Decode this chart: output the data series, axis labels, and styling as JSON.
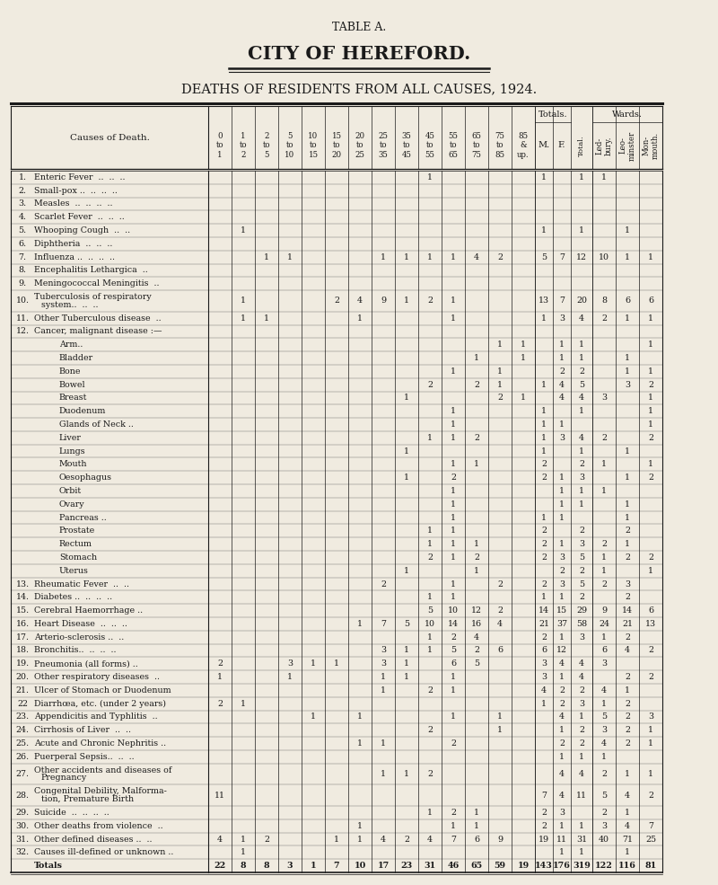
{
  "title1": "TABLE A.",
  "title2": "CITY OF HEREFORD.",
  "title3": "DEATHS OF RESIDENTS FROM ALL CAUSES, 1924.",
  "bg_color": "#f0ebe0",
  "text_color": "#1a1a1a",
  "rows": [
    {
      "num": "1.",
      "label": "Enteric Fever  ..  ..  ..",
      "indent": 0,
      "data": [
        null,
        null,
        null,
        null,
        null,
        null,
        null,
        null,
        null,
        1,
        null,
        null,
        null,
        null,
        1,
        null,
        1,
        1,
        null,
        null
      ]
    },
    {
      "num": "2.",
      "label": "Small-pox ..  ..  ..  ..",
      "indent": 0,
      "data": [
        null,
        null,
        null,
        null,
        null,
        null,
        null,
        null,
        null,
        null,
        null,
        null,
        null,
        null,
        null,
        null,
        null,
        null,
        null,
        null
      ]
    },
    {
      "num": "3.",
      "label": "Measles  ..  ..  ..  ..",
      "indent": 0,
      "data": [
        null,
        null,
        null,
        null,
        null,
        null,
        null,
        null,
        null,
        null,
        null,
        null,
        null,
        null,
        null,
        null,
        null,
        null,
        null,
        null
      ]
    },
    {
      "num": "4.",
      "label": "Scarlet Fever  ..  ..  ..",
      "indent": 0,
      "data": [
        null,
        null,
        null,
        null,
        null,
        null,
        null,
        null,
        null,
        null,
        null,
        null,
        null,
        null,
        null,
        null,
        null,
        null,
        null,
        null
      ]
    },
    {
      "num": "5.",
      "label": "Whooping Cough  ..  ..",
      "indent": 0,
      "data": [
        null,
        1,
        null,
        null,
        null,
        null,
        null,
        null,
        null,
        null,
        null,
        null,
        null,
        null,
        1,
        null,
        1,
        null,
        1,
        null
      ]
    },
    {
      "num": "6.",
      "label": "Diphtheria  ..  ..  ..",
      "indent": 0,
      "data": [
        null,
        null,
        null,
        null,
        null,
        null,
        null,
        null,
        null,
        null,
        null,
        null,
        null,
        null,
        null,
        null,
        null,
        null,
        null,
        null
      ]
    },
    {
      "num": "7.",
      "label": "Influenza ..  ..  ..  ..",
      "indent": 0,
      "data": [
        null,
        null,
        1,
        1,
        null,
        null,
        null,
        1,
        1,
        1,
        1,
        4,
        2,
        null,
        5,
        7,
        12,
        10,
        1,
        1
      ]
    },
    {
      "num": "8.",
      "label": "Encephalitis Lethargica  ..",
      "indent": 0,
      "data": [
        null,
        null,
        null,
        null,
        null,
        null,
        null,
        null,
        null,
        null,
        null,
        null,
        null,
        null,
        null,
        null,
        null,
        null,
        null,
        null
      ]
    },
    {
      "num": "9.",
      "label": "Meningococcal Meningitis  ..",
      "indent": 0,
      "data": [
        null,
        null,
        null,
        null,
        null,
        null,
        null,
        null,
        null,
        null,
        null,
        null,
        null,
        null,
        null,
        null,
        null,
        null,
        null,
        null
      ]
    },
    {
      "num": "10.",
      "label": "Tuberculosis of respiratory",
      "label2": "        system..  ..  ..",
      "indent": 0,
      "data": [
        null,
        1,
        null,
        null,
        null,
        2,
        4,
        9,
        1,
        2,
        1,
        null,
        null,
        null,
        13,
        7,
        20,
        8,
        6,
        6
      ]
    },
    {
      "num": "11.",
      "label": "Other Tuberculous disease  ..",
      "indent": 0,
      "data": [
        null,
        1,
        1,
        null,
        null,
        null,
        1,
        null,
        null,
        null,
        1,
        null,
        null,
        null,
        1,
        3,
        4,
        2,
        1,
        1
      ]
    },
    {
      "num": "12.",
      "label": "Cancer, malignant disease :—",
      "indent": 0,
      "data": [
        null,
        null,
        null,
        null,
        null,
        null,
        null,
        null,
        null,
        null,
        null,
        null,
        null,
        null,
        null,
        null,
        null,
        null,
        null,
        null
      ]
    },
    {
      "num": "",
      "label": "Arm..",
      "indent": 1,
      "data": [
        null,
        null,
        null,
        null,
        null,
        null,
        null,
        null,
        null,
        null,
        null,
        null,
        1,
        1,
        null,
        1,
        1,
        null,
        null,
        1
      ]
    },
    {
      "num": "",
      "label": "Bladder",
      "indent": 1,
      "data": [
        null,
        null,
        null,
        null,
        null,
        null,
        null,
        null,
        null,
        null,
        null,
        1,
        null,
        1,
        null,
        1,
        1,
        null,
        1,
        null
      ]
    },
    {
      "num": "",
      "label": "Bone",
      "indent": 1,
      "data": [
        null,
        null,
        null,
        null,
        null,
        null,
        null,
        null,
        null,
        null,
        1,
        null,
        1,
        null,
        null,
        2,
        2,
        null,
        1,
        1
      ]
    },
    {
      "num": "",
      "label": "Bowel",
      "indent": 1,
      "data": [
        null,
        null,
        null,
        null,
        null,
        null,
        null,
        null,
        null,
        2,
        null,
        2,
        1,
        null,
        1,
        4,
        5,
        null,
        3,
        2
      ]
    },
    {
      "num": "",
      "label": "Breast",
      "indent": 1,
      "data": [
        null,
        null,
        null,
        null,
        null,
        null,
        null,
        null,
        1,
        null,
        null,
        null,
        2,
        1,
        null,
        4,
        4,
        3,
        null,
        1
      ]
    },
    {
      "num": "",
      "label": "Duodenum",
      "indent": 1,
      "data": [
        null,
        null,
        null,
        null,
        null,
        null,
        null,
        null,
        null,
        null,
        1,
        null,
        null,
        null,
        1,
        null,
        1,
        null,
        null,
        1
      ]
    },
    {
      "num": "",
      "label": "Glands of Neck ..",
      "indent": 1,
      "data": [
        null,
        null,
        null,
        null,
        null,
        null,
        null,
        null,
        null,
        null,
        1,
        null,
        null,
        null,
        1,
        1,
        null,
        null,
        null,
        1
      ]
    },
    {
      "num": "",
      "label": "Liver",
      "indent": 1,
      "data": [
        null,
        null,
        null,
        null,
        null,
        null,
        null,
        null,
        null,
        1,
        1,
        2,
        null,
        null,
        1,
        3,
        4,
        2,
        null,
        2
      ]
    },
    {
      "num": "",
      "label": "Lungs",
      "indent": 1,
      "data": [
        null,
        null,
        null,
        null,
        null,
        null,
        null,
        null,
        1,
        null,
        null,
        null,
        null,
        null,
        1,
        null,
        1,
        null,
        1,
        null
      ]
    },
    {
      "num": "",
      "label": "Mouth",
      "indent": 1,
      "data": [
        null,
        null,
        null,
        null,
        null,
        null,
        null,
        null,
        null,
        null,
        1,
        1,
        null,
        null,
        2,
        null,
        2,
        1,
        null,
        1
      ]
    },
    {
      "num": "",
      "label": "Oesophagus",
      "indent": 1,
      "data": [
        null,
        null,
        null,
        null,
        null,
        null,
        null,
        null,
        1,
        null,
        2,
        null,
        null,
        null,
        2,
        1,
        3,
        null,
        1,
        2
      ]
    },
    {
      "num": "",
      "label": "Orbit",
      "indent": 1,
      "data": [
        null,
        null,
        null,
        null,
        null,
        null,
        null,
        null,
        null,
        null,
        1,
        null,
        null,
        null,
        null,
        1,
        1,
        1,
        null,
        null
      ]
    },
    {
      "num": "",
      "label": "Ovary",
      "indent": 1,
      "data": [
        null,
        null,
        null,
        null,
        null,
        null,
        null,
        null,
        null,
        null,
        1,
        null,
        null,
        null,
        null,
        1,
        1,
        null,
        1,
        null
      ]
    },
    {
      "num": "",
      "label": "Pancreas ..",
      "indent": 1,
      "data": [
        null,
        null,
        null,
        null,
        null,
        null,
        null,
        null,
        null,
        null,
        1,
        null,
        null,
        null,
        1,
        1,
        null,
        null,
        1,
        null
      ]
    },
    {
      "num": "",
      "label": "Prostate",
      "indent": 1,
      "data": [
        null,
        null,
        null,
        null,
        null,
        null,
        null,
        null,
        null,
        1,
        1,
        null,
        null,
        null,
        2,
        null,
        2,
        null,
        2,
        null
      ]
    },
    {
      "num": "",
      "label": "Rectum",
      "indent": 1,
      "data": [
        null,
        null,
        null,
        null,
        null,
        null,
        null,
        null,
        null,
        1,
        1,
        1,
        null,
        null,
        2,
        1,
        3,
        2,
        1,
        null
      ]
    },
    {
      "num": "",
      "label": "Stomach",
      "indent": 1,
      "data": [
        null,
        null,
        null,
        null,
        null,
        null,
        null,
        null,
        null,
        2,
        1,
        2,
        null,
        null,
        2,
        3,
        5,
        1,
        2,
        2
      ]
    },
    {
      "num": "",
      "label": "Uterus",
      "indent": 1,
      "data": [
        null,
        null,
        null,
        null,
        null,
        null,
        null,
        null,
        1,
        null,
        null,
        1,
        null,
        null,
        null,
        2,
        2,
        1,
        null,
        1
      ]
    },
    {
      "num": "13.",
      "label": "Rheumatic Fever  ..  ..",
      "indent": 0,
      "data": [
        null,
        null,
        null,
        null,
        null,
        null,
        null,
        2,
        null,
        null,
        1,
        null,
        2,
        null,
        2,
        3,
        5,
        2,
        3,
        null
      ]
    },
    {
      "num": "14.",
      "label": "Diabetes ..  ..  ..  ..",
      "indent": 0,
      "data": [
        null,
        null,
        null,
        null,
        null,
        null,
        null,
        null,
        null,
        1,
        1,
        null,
        null,
        null,
        1,
        1,
        2,
        null,
        2,
        null
      ]
    },
    {
      "num": "15.",
      "label": "Cerebral Haemorrhage ..",
      "indent": 0,
      "data": [
        null,
        null,
        null,
        null,
        null,
        null,
        null,
        null,
        null,
        5,
        10,
        12,
        2,
        null,
        14,
        15,
        29,
        9,
        14,
        6
      ]
    },
    {
      "num": "16.",
      "label": "Heart Disease  ..  ..  ..",
      "indent": 0,
      "data": [
        null,
        null,
        null,
        null,
        null,
        null,
        1,
        7,
        5,
        10,
        14,
        16,
        4,
        null,
        21,
        37,
        58,
        24,
        21,
        13
      ]
    },
    {
      "num": "17.",
      "label": "Arterio-sclerosis ..  ..",
      "indent": 0,
      "data": [
        null,
        null,
        null,
        null,
        null,
        null,
        null,
        null,
        null,
        1,
        2,
        4,
        null,
        null,
        2,
        1,
        3,
        1,
        2,
        null
      ]
    },
    {
      "num": "18.",
      "label": "Bronchitis..  ..  ..  ..",
      "indent": 0,
      "data": [
        null,
        null,
        null,
        null,
        null,
        null,
        null,
        3,
        1,
        1,
        5,
        2,
        6,
        null,
        6,
        12,
        null,
        6,
        4,
        2
      ]
    },
    {
      "num": "19.",
      "label": "Pneumonia (all forms) ..",
      "indent": 0,
      "data": [
        2,
        null,
        null,
        3,
        1,
        1,
        null,
        3,
        1,
        null,
        6,
        5,
        null,
        null,
        3,
        4,
        4,
        3,
        null,
        null
      ]
    },
    {
      "num": "20.",
      "label": "Other respiratory diseases  ..",
      "indent": 0,
      "data": [
        1,
        null,
        null,
        1,
        null,
        null,
        null,
        1,
        1,
        null,
        1,
        null,
        null,
        null,
        3,
        1,
        4,
        null,
        2,
        2
      ]
    },
    {
      "num": "21.",
      "label": "Ulcer of Stomach or Duodenum",
      "indent": 0,
      "data": [
        null,
        null,
        null,
        null,
        null,
        null,
        null,
        1,
        null,
        2,
        1,
        null,
        null,
        null,
        4,
        2,
        2,
        4,
        1,
        null
      ]
    },
    {
      "num": "22",
      "label": "Diarrhœa, etc. (under 2 years)",
      "indent": 0,
      "data": [
        2,
        1,
        null,
        null,
        null,
        null,
        null,
        null,
        null,
        null,
        null,
        null,
        null,
        null,
        1,
        2,
        3,
        1,
        2,
        null
      ]
    },
    {
      "num": "23.",
      "label": "Appendicitis and Typhlitis  ..",
      "indent": 0,
      "data": [
        null,
        null,
        null,
        null,
        1,
        null,
        1,
        null,
        null,
        null,
        1,
        null,
        1,
        null,
        null,
        4,
        1,
        5,
        2,
        3
      ]
    },
    {
      "num": "24.",
      "label": "Cirrhosis of Liver  ..  ..",
      "indent": 0,
      "data": [
        null,
        null,
        null,
        null,
        null,
        null,
        null,
        null,
        null,
        2,
        null,
        null,
        1,
        null,
        null,
        1,
        2,
        3,
        2,
        1
      ]
    },
    {
      "num": "25.",
      "label": "Acute and Chronic Nephritis ..",
      "indent": 0,
      "data": [
        null,
        null,
        null,
        null,
        null,
        null,
        1,
        1,
        null,
        null,
        2,
        null,
        null,
        null,
        null,
        2,
        2,
        4,
        2,
        1
      ]
    },
    {
      "num": "26.",
      "label": "Puerperal Sepsis..  ..  ..",
      "indent": 0,
      "data": [
        null,
        null,
        null,
        null,
        null,
        null,
        null,
        null,
        null,
        null,
        null,
        null,
        null,
        null,
        null,
        1,
        1,
        1,
        null,
        null
      ]
    },
    {
      "num": "27.",
      "label": "Other accidents and diseases of",
      "label2": "        Pregnancy",
      "indent": 0,
      "data": [
        null,
        null,
        null,
        null,
        null,
        null,
        null,
        1,
        1,
        2,
        null,
        null,
        null,
        null,
        null,
        4,
        4,
        2,
        1,
        1
      ]
    },
    {
      "num": "28.",
      "label": "Congenital Debility, Malforma-",
      "label2": "        tion, Premature Birth",
      "indent": 0,
      "data": [
        11,
        null,
        null,
        null,
        null,
        null,
        null,
        null,
        null,
        null,
        null,
        null,
        null,
        null,
        7,
        4,
        11,
        5,
        4,
        2
      ]
    },
    {
      "num": "29.",
      "label": "Suicide  ..  ..  ..  ..",
      "indent": 0,
      "data": [
        null,
        null,
        null,
        null,
        null,
        null,
        null,
        null,
        null,
        1,
        2,
        1,
        null,
        null,
        2,
        3,
        null,
        2,
        1,
        null
      ]
    },
    {
      "num": "30.",
      "label": "Other deaths from violence  ..",
      "indent": 0,
      "data": [
        null,
        null,
        null,
        null,
        null,
        null,
        1,
        null,
        null,
        null,
        1,
        1,
        null,
        null,
        2,
        1,
        1,
        3,
        4,
        7
      ]
    },
    {
      "num": "31.",
      "label": "Other defined diseases ..  ..",
      "indent": 0,
      "data": [
        4,
        1,
        2,
        null,
        null,
        1,
        1,
        4,
        2,
        4,
        7,
        6,
        9,
        null,
        19,
        11,
        31,
        40,
        71,
        25
      ]
    },
    {
      "num": "32.",
      "label": "Causes ill-defined or unknown ..",
      "indent": 0,
      "data": [
        null,
        1,
        null,
        null,
        null,
        null,
        null,
        null,
        null,
        null,
        null,
        null,
        null,
        null,
        null,
        1,
        1,
        null,
        1,
        null
      ]
    },
    {
      "num": "",
      "label": "Totals",
      "indent": 0,
      "bold": true,
      "data": [
        22,
        8,
        8,
        3,
        1,
        7,
        10,
        17,
        23,
        31,
        46,
        65,
        59,
        19,
        143,
        176,
        319,
        122,
        116,
        81
      ]
    }
  ]
}
